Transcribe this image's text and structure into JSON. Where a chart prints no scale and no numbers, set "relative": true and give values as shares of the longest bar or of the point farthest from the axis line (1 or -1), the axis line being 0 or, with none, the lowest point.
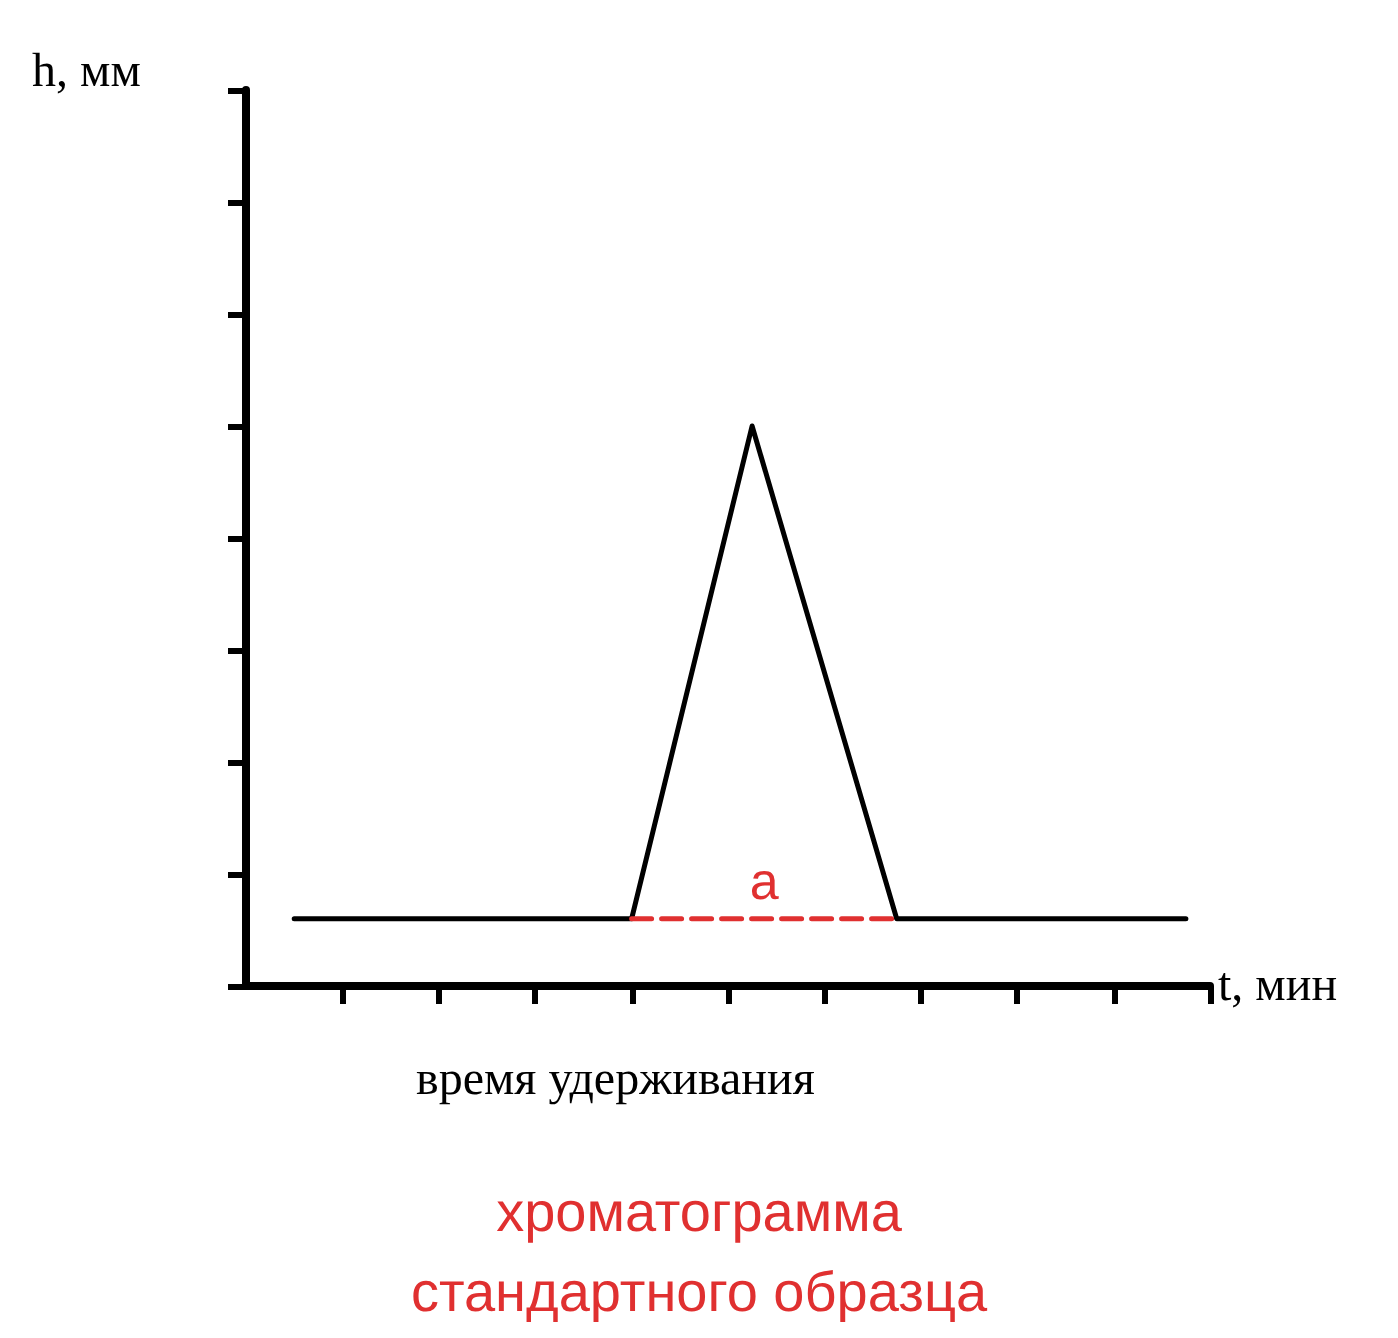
{
  "chart_data": {
    "type": "line",
    "relative": true,
    "xlabel": "t, мин",
    "categories": [
      null,
      null,
      null,
      null,
      null,
      null,
      null,
      null,
      null,
      null,
      null,
      null,
      null,
      null,
      null,
      null,
      null,
      null,
      null,
      null,
      null,
      null,
      null,
      null,
      null,
      null,
      null,
      null,
      null,
      null,
      null,
      null,
      null,
      null,
      null,
      null,
      null,
      null,
      null,
      null,
      null
    ],
    "marker": "none",
    "series": [
      {
        "color": "#000000",
        "line_style": "solid",
        "values": [
          null,
          null,
          0.12,
          null,
          null,
          null,
          null,
          null,
          null,
          null,
          null,
          null,
          null,
          null,
          null,
          null,
          0.12,
          null,
          null,
          null,
          null,
          1,
          null,
          null,
          null,
          null,
          null,
          0.12,
          null,
          null,
          null,
          null,
          null,
          null,
          null,
          null,
          null,
          null,
          null,
          0.12,
          null
        ]
      },
      {
        "name": "a",
        "color": "#e03030",
        "line_style": "dashed",
        "values": [
          null,
          null,
          null,
          null,
          null,
          null,
          null,
          null,
          null,
          null,
          null,
          null,
          null,
          null,
          null,
          null,
          0.12,
          null,
          null,
          null,
          null,
          null,
          null,
          null,
          null,
          null,
          null,
          0.12,
          null,
          null,
          null,
          null,
          null,
          null,
          null,
          null,
          null,
          null,
          null,
          null,
          null
        ]
      }
    ],
    "annotations": [
      "h, мм",
      "время удерживания",
      "хроматограмма стандартного образца"
    ]
  }
}
